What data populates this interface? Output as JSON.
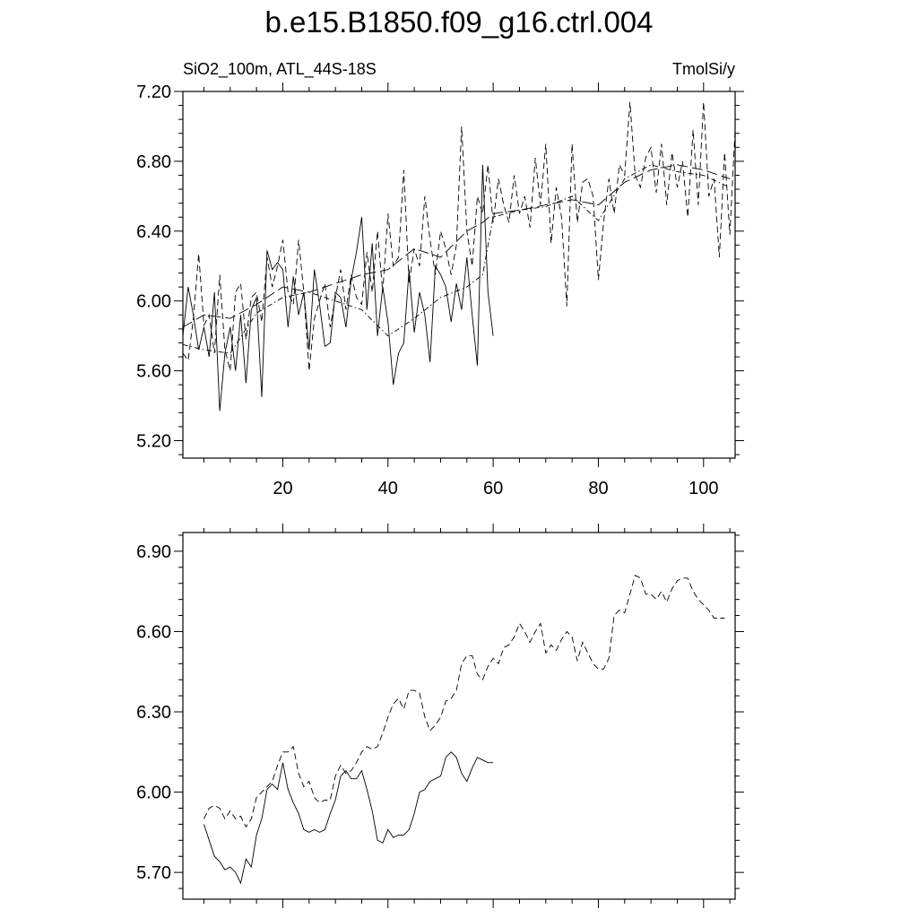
{
  "title": "b.e15.B1850.f09_g16.ctrl.004",
  "chart_data": [
    {
      "type": "line",
      "subtitle_left": "SiO2_100m, ATL_44S-18S",
      "subtitle_right": "TmolSi/y",
      "xlim": [
        1,
        106
      ],
      "ylim": [
        5.1,
        7.2
      ],
      "xticks": [
        20,
        40,
        60,
        80,
        100
      ],
      "xtick_labels": [
        "20",
        "40",
        "60",
        "80",
        "100"
      ],
      "yticks": [
        5.2,
        5.6,
        6.0,
        6.4,
        6.8,
        7.2
      ],
      "ytick_labels": [
        "5.20",
        "5.60",
        "6.00",
        "6.40",
        "6.80",
        "7.20"
      ],
      "grid": false,
      "series": [
        {
          "line_style": "solid",
          "x": [
            1,
            2,
            3,
            4,
            5,
            6,
            7,
            8,
            9,
            10,
            11,
            12,
            13,
            14,
            15,
            16,
            17,
            18,
            19,
            20,
            21,
            22,
            23,
            24,
            25,
            26,
            27,
            28,
            29,
            30,
            31,
            32,
            33,
            34,
            35,
            36,
            37,
            38,
            39,
            40,
            41,
            42,
            43,
            44,
            45,
            46,
            47,
            48,
            49,
            50,
            51,
            52,
            53,
            54,
            55,
            56,
            57,
            58,
            59,
            60
          ],
          "values": [
            5.8,
            6.08,
            5.92,
            5.72,
            5.85,
            5.68,
            6.05,
            5.37,
            5.7,
            5.85,
            5.6,
            5.92,
            5.53,
            5.95,
            6.02,
            5.45,
            6.29,
            6.18,
            6.22,
            6.18,
            5.85,
            6.14,
            5.92,
            6.05,
            5.72,
            6.18,
            5.98,
            5.74,
            5.76,
            6.05,
            6.02,
            5.85,
            6.12,
            6.28,
            6.48,
            5.95,
            6.33,
            5.8,
            6.08,
            5.88,
            5.52,
            5.7,
            5.76,
            6.18,
            5.82,
            6.05,
            5.92,
            5.65,
            6.2,
            6.15,
            6.08,
            5.88,
            6.1,
            5.95,
            6.25,
            5.92,
            5.63,
            6.78,
            6.05,
            5.8
          ]
        },
        {
          "line_style": "dashed",
          "x": [
            1,
            2,
            3,
            4,
            5,
            6,
            7,
            8,
            9,
            10,
            11,
            12,
            13,
            14,
            15,
            16,
            17,
            18,
            19,
            20,
            21,
            22,
            23,
            24,
            25,
            26,
            27,
            28,
            29,
            30,
            31,
            32,
            33,
            34,
            35,
            36,
            37,
            38,
            39,
            40,
            41,
            42,
            43,
            44,
            45,
            46,
            47,
            48,
            49,
            50,
            51,
            52,
            53,
            54,
            55,
            56,
            57,
            58,
            59,
            60,
            61,
            62,
            63,
            64,
            65,
            66,
            67,
            68,
            69,
            70,
            71,
            72,
            73,
            74,
            75,
            76,
            77,
            78,
            79,
            80,
            81,
            82,
            83,
            84,
            85,
            86,
            87,
            88,
            89,
            90,
            91,
            92,
            93,
            94,
            95,
            96,
            97,
            98,
            99,
            100,
            101,
            102,
            103,
            104,
            105,
            106
          ],
          "values": [
            5.7,
            5.66,
            5.9,
            6.27,
            5.86,
            5.92,
            5.7,
            6.15,
            5.72,
            5.6,
            6.05,
            6.1,
            5.78,
            6.02,
            6.05,
            5.88,
            6.25,
            6.08,
            6.2,
            6.35,
            6.05,
            5.98,
            6.35,
            6.05,
            5.6,
            5.9,
            6.0,
            6.1,
            5.85,
            6.02,
            6.18,
            5.95,
            6.15,
            6.02,
            5.98,
            6.28,
            6.05,
            6.4,
            6.05,
            6.5,
            6.2,
            6.25,
            6.75,
            6.1,
            6.3,
            6.2,
            6.6,
            6.35,
            6.15,
            6.4,
            6.3,
            6.15,
            6.32,
            7.0,
            6.4,
            6.2,
            6.6,
            6.5,
            6.78,
            6.45,
            6.7,
            6.55,
            6.45,
            6.72,
            6.5,
            6.6,
            6.42,
            6.82,
            6.55,
            6.9,
            6.33,
            6.65,
            6.48,
            5.97,
            6.9,
            6.45,
            6.68,
            6.7,
            6.6,
            6.12,
            6.45,
            6.7,
            6.5,
            6.78,
            6.72,
            7.14,
            6.72,
            6.65,
            6.82,
            6.88,
            6.62,
            6.9,
            6.55,
            6.85,
            6.65,
            6.8,
            6.48,
            6.98,
            6.55,
            7.14,
            6.6,
            6.7,
            6.25,
            6.85,
            6.38,
            6.98
          ]
        },
        {
          "line_style": "dash-dot",
          "x": [
            1,
            5,
            10,
            15,
            20,
            25,
            30,
            35,
            40,
            45,
            50,
            55,
            58,
            60,
            65,
            70,
            75,
            80,
            85,
            90,
            95,
            100,
            105
          ],
          "values": [
            5.75,
            5.72,
            5.7,
            5.93,
            6.02,
            6.05,
            6.0,
            5.95,
            5.8,
            5.9,
            6.02,
            6.08,
            6.15,
            6.48,
            6.52,
            6.54,
            6.6,
            6.46,
            6.7,
            6.78,
            6.74,
            6.72,
            6.65
          ]
        },
        {
          "line_style": "long-dash",
          "x": [
            1,
            5,
            10,
            15,
            20,
            25,
            30,
            35,
            40,
            45,
            50,
            55,
            58,
            60,
            65,
            70,
            75,
            80,
            85,
            90,
            95,
            100,
            105
          ],
          "values": [
            5.85,
            5.92,
            5.9,
            5.98,
            6.08,
            6.05,
            6.1,
            6.15,
            6.18,
            6.3,
            6.25,
            6.4,
            6.45,
            6.5,
            6.52,
            6.55,
            6.58,
            6.55,
            6.68,
            6.75,
            6.78,
            6.75,
            6.7
          ]
        }
      ]
    },
    {
      "type": "line",
      "xlim": [
        1,
        106
      ],
      "ylim": [
        5.6,
        6.97
      ],
      "xticks": [
        20,
        40,
        60,
        80,
        100
      ],
      "yticks": [
        5.7,
        6.0,
        6.3,
        6.6,
        6.9
      ],
      "ytick_labels": [
        "5.70",
        "6.00",
        "6.30",
        "6.60",
        "6.90"
      ],
      "grid": false,
      "series": [
        {
          "line_style": "solid",
          "x": [
            5,
            6,
            7,
            8,
            9,
            10,
            11,
            12,
            13,
            14,
            15,
            16,
            17,
            18,
            19,
            20,
            21,
            22,
            23,
            24,
            25,
            26,
            27,
            28,
            29,
            30,
            31,
            32,
            33,
            34,
            35,
            36,
            37,
            38,
            39,
            40,
            41,
            42,
            43,
            44,
            45,
            46,
            47,
            48,
            49,
            50,
            51,
            52,
            53,
            54,
            55,
            56,
            57,
            58,
            59,
            60
          ],
          "values": [
            5.88,
            5.82,
            5.76,
            5.74,
            5.71,
            5.72,
            5.7,
            5.66,
            5.75,
            5.72,
            5.84,
            5.9,
            6.01,
            6.03,
            6.01,
            6.11,
            6.01,
            5.96,
            5.92,
            5.86,
            5.85,
            5.86,
            5.85,
            5.86,
            5.92,
            5.97,
            6.06,
            6.08,
            6.05,
            6.05,
            6.08,
            6.01,
            5.93,
            5.82,
            5.81,
            5.86,
            5.83,
            5.84,
            5.84,
            5.86,
            5.92,
            6.0,
            6.01,
            6.04,
            6.05,
            6.06,
            6.13,
            6.15,
            6.13,
            6.07,
            6.04,
            6.09,
            6.13,
            6.12,
            6.11,
            6.11
          ]
        },
        {
          "line_style": "dashed",
          "x": [
            5,
            6,
            7,
            8,
            9,
            10,
            11,
            12,
            13,
            14,
            15,
            16,
            17,
            18,
            19,
            20,
            21,
            22,
            23,
            24,
            25,
            26,
            27,
            28,
            29,
            30,
            31,
            32,
            33,
            34,
            35,
            36,
            37,
            38,
            39,
            40,
            41,
            42,
            43,
            44,
            45,
            46,
            47,
            48,
            49,
            50,
            51,
            52,
            53,
            54,
            55,
            56,
            57,
            58,
            59,
            60,
            61,
            62,
            63,
            64,
            65,
            66,
            67,
            68,
            69,
            70,
            71,
            72,
            73,
            74,
            75,
            76,
            77,
            78,
            79,
            80,
            81,
            82,
            83,
            84,
            85,
            86,
            87,
            88,
            89,
            90,
            91,
            92,
            93,
            94,
            95,
            96,
            97,
            98,
            99,
            100,
            101,
            102,
            103,
            104
          ],
          "values": [
            5.9,
            5.94,
            5.95,
            5.94,
            5.9,
            5.93,
            5.9,
            5.91,
            5.87,
            5.9,
            5.98,
            6.0,
            6.02,
            6.04,
            6.1,
            6.15,
            6.15,
            6.17,
            6.07,
            6.02,
            6.04,
            5.98,
            5.96,
            5.97,
            5.97,
            6.06,
            6.1,
            6.07,
            6.08,
            6.11,
            6.15,
            6.17,
            6.16,
            6.17,
            6.22,
            6.28,
            6.33,
            6.35,
            6.31,
            6.38,
            6.38,
            6.37,
            6.28,
            6.23,
            6.25,
            6.28,
            6.34,
            6.35,
            6.38,
            6.48,
            6.51,
            6.51,
            6.44,
            6.42,
            6.47,
            6.5,
            6.48,
            6.54,
            6.55,
            6.58,
            6.63,
            6.6,
            6.56,
            6.6,
            6.63,
            6.52,
            6.55,
            6.53,
            6.57,
            6.6,
            6.58,
            6.49,
            6.56,
            6.52,
            6.48,
            6.46,
            6.46,
            6.5,
            6.66,
            6.68,
            6.67,
            6.74,
            6.81,
            6.8,
            6.74,
            6.74,
            6.72,
            6.75,
            6.71,
            6.76,
            6.79,
            6.8,
            6.8,
            6.75,
            6.72,
            6.7,
            6.68,
            6.65,
            6.65,
            6.65
          ]
        }
      ]
    }
  ]
}
